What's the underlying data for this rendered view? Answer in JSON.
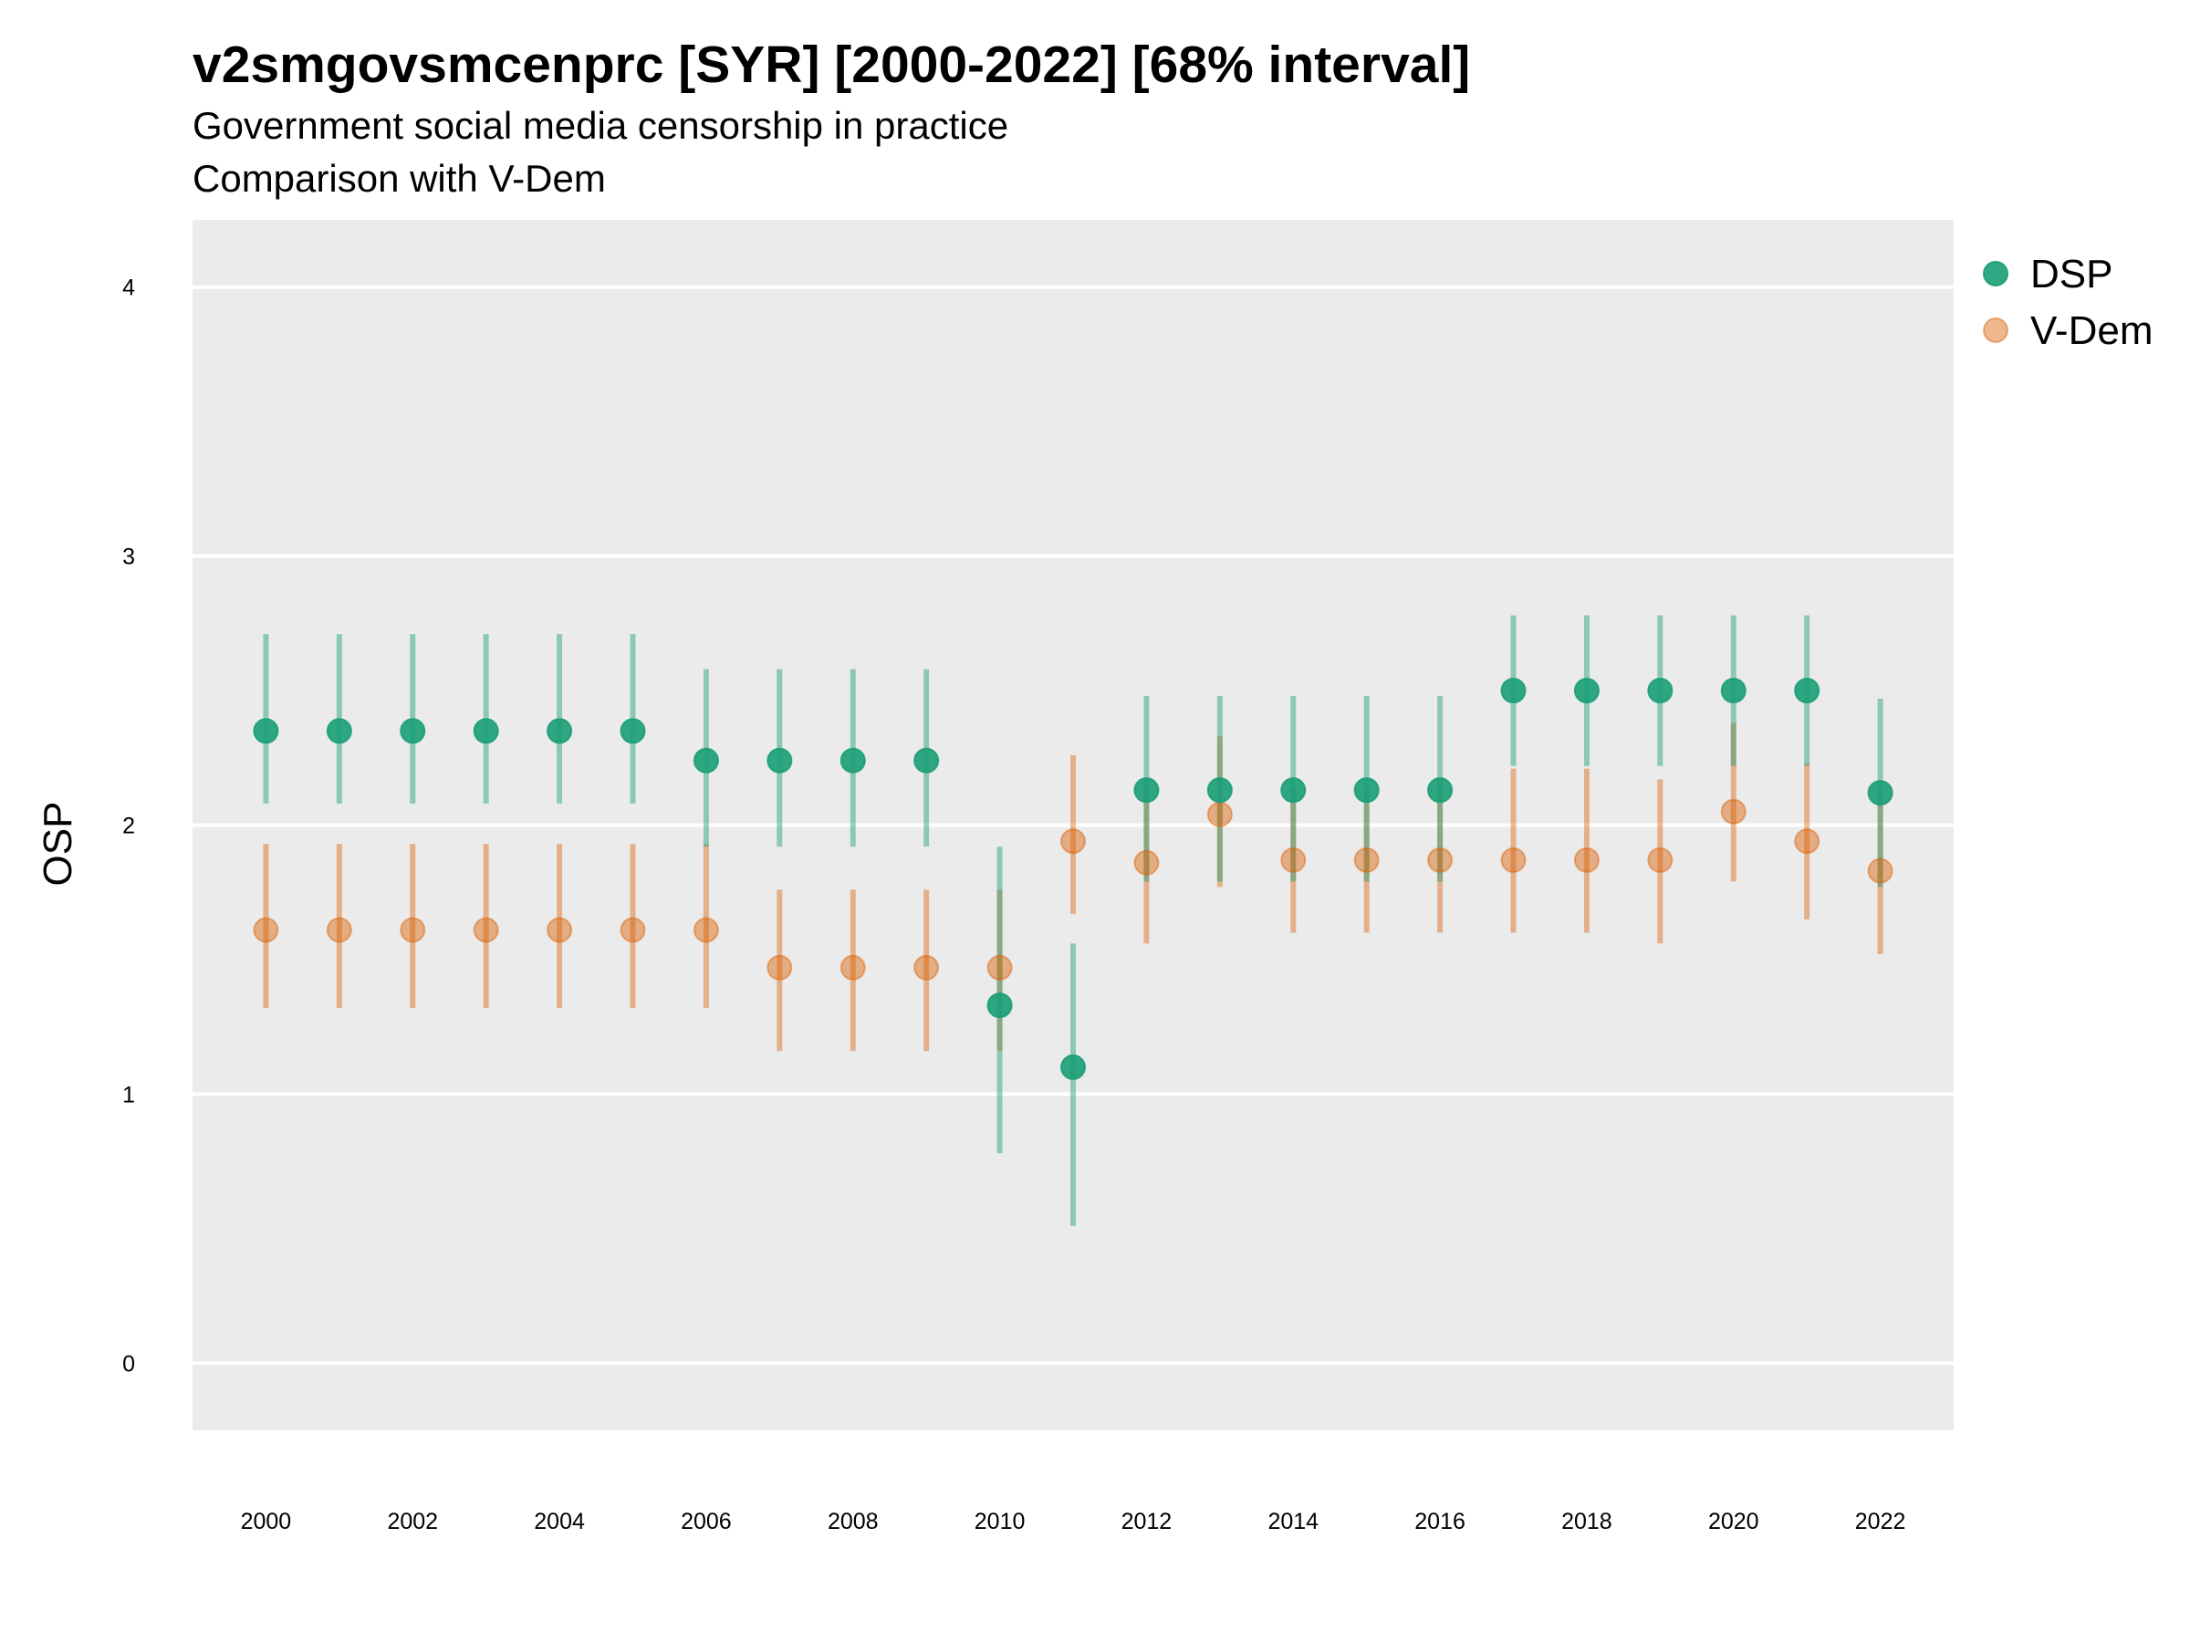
{
  "title": "v2smgovsmcenprc [SYR] [2000-2022] [68% interval]",
  "subtitle": "Government social media censorship in practice",
  "subtitle2": "Comparison with V-Dem",
  "chart_data": {
    "type": "scatter",
    "title": "v2smgovsmcenprc [SYR] [2000-2022] [68% interval]",
    "subtitle": "Government social media censorship in practice",
    "caption": "Comparison with V-Dem",
    "xlabel": "",
    "ylabel": "OSP",
    "xlim": [
      1999,
      2023
    ],
    "ylim": [
      -0.25,
      4.25
    ],
    "x_ticks": [
      2000,
      2002,
      2004,
      2006,
      2008,
      2010,
      2012,
      2014,
      2016,
      2018,
      2020,
      2022
    ],
    "y_ticks": [
      0,
      1,
      2,
      3,
      4
    ],
    "grid": true,
    "legend_position": "right",
    "x": [
      2000,
      2001,
      2002,
      2003,
      2004,
      2005,
      2006,
      2007,
      2008,
      2009,
      2010,
      2011,
      2012,
      2013,
      2014,
      2015,
      2016,
      2017,
      2018,
      2019,
      2020,
      2021,
      2022
    ],
    "series": [
      {
        "name": "DSP",
        "color": "#1b9e77",
        "values": [
          2.35,
          2.35,
          2.35,
          2.35,
          2.35,
          2.35,
          2.24,
          2.24,
          2.24,
          2.24,
          1.33,
          1.1,
          2.13,
          2.13,
          2.13,
          2.13,
          2.13,
          2.5,
          2.5,
          2.5,
          2.5,
          2.5,
          2.12
        ],
        "lower": [
          2.08,
          2.08,
          2.08,
          2.08,
          2.08,
          2.08,
          1.92,
          1.92,
          1.92,
          1.92,
          0.78,
          0.51,
          1.79,
          1.79,
          1.79,
          1.79,
          1.79,
          2.22,
          2.22,
          2.22,
          2.22,
          2.22,
          1.77
        ],
        "upper": [
          2.71,
          2.71,
          2.71,
          2.71,
          2.71,
          2.71,
          2.58,
          2.58,
          2.58,
          2.58,
          1.92,
          1.56,
          2.48,
          2.48,
          2.48,
          2.48,
          2.48,
          2.78,
          2.78,
          2.78,
          2.78,
          2.78,
          2.47
        ]
      },
      {
        "name": "V-Dem",
        "color": "#d95f02",
        "values": [
          1.61,
          1.61,
          1.61,
          1.61,
          1.61,
          1.61,
          1.61,
          1.47,
          1.47,
          1.47,
          1.47,
          1.94,
          1.86,
          2.04,
          1.87,
          1.87,
          1.87,
          1.87,
          1.87,
          1.87,
          2.05,
          1.94,
          1.83
        ],
        "lower": [
          1.32,
          1.32,
          1.32,
          1.32,
          1.32,
          1.32,
          1.32,
          1.16,
          1.16,
          1.16,
          1.16,
          1.67,
          1.56,
          1.77,
          1.6,
          1.6,
          1.6,
          1.6,
          1.6,
          1.56,
          1.79,
          1.65,
          1.52
        ],
        "upper": [
          1.93,
          1.93,
          1.93,
          1.93,
          1.93,
          1.93,
          1.93,
          1.76,
          1.76,
          1.76,
          1.76,
          2.26,
          2.15,
          2.33,
          2.14,
          2.14,
          2.14,
          2.21,
          2.21,
          2.17,
          2.38,
          2.23,
          2.13
        ]
      }
    ]
  }
}
